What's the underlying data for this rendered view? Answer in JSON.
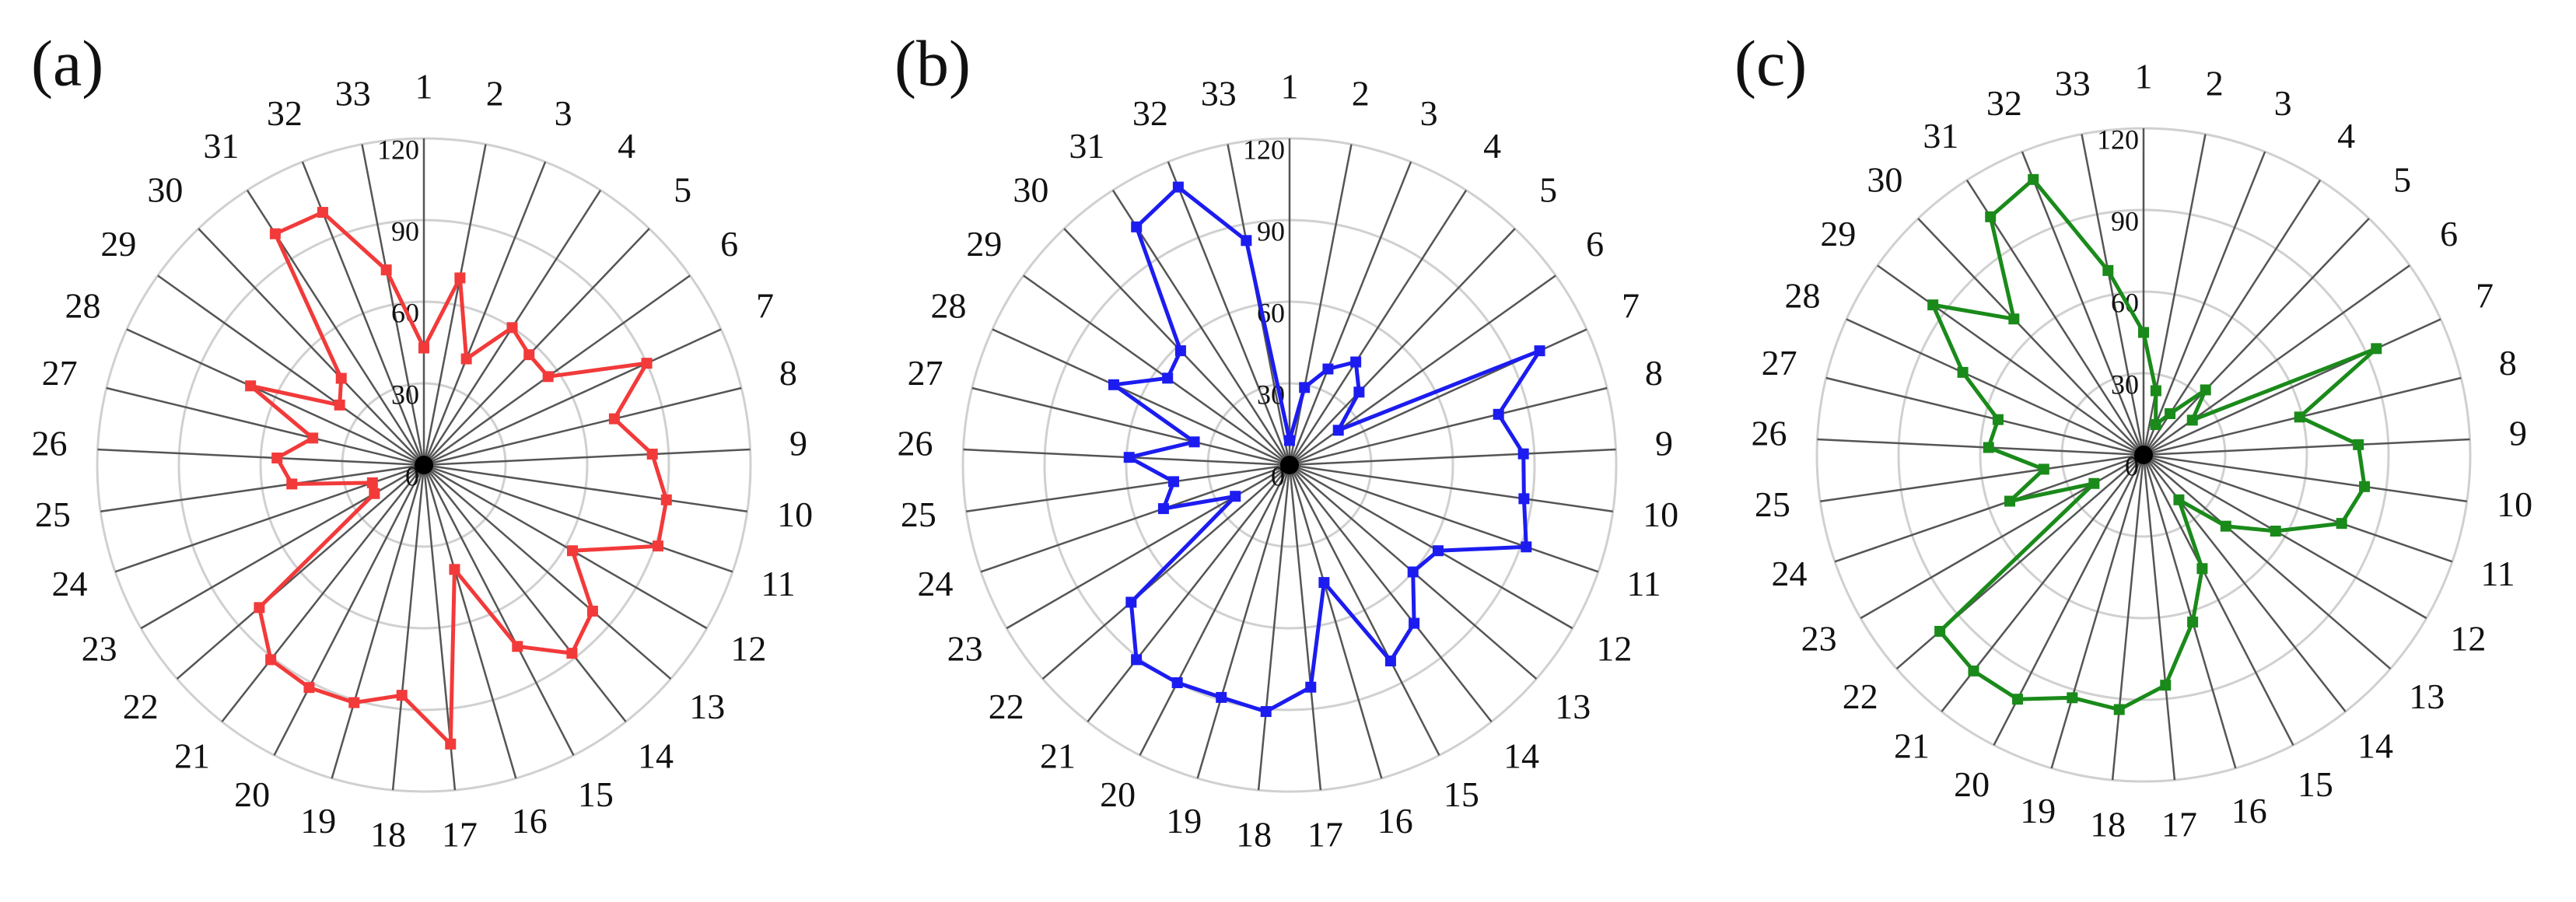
{
  "chart_data": [
    {
      "type": "radar",
      "title": "(a)",
      "color": "#f23a3a",
      "categories": [
        "1",
        "2",
        "3",
        "4",
        "5",
        "6",
        "7",
        "8",
        "9",
        "10",
        "11",
        "12",
        "13",
        "14",
        "15",
        "16",
        "17",
        "18",
        "19",
        "20",
        "21",
        "22",
        "23",
        "24",
        "25",
        "26",
        "27",
        "28",
        "29",
        "30",
        "31",
        "32",
        "33"
      ],
      "values": [
        43,
        70,
        42,
        60,
        56,
        56,
        90,
        72,
        84,
        90,
        91,
        63,
        82,
        88,
        75,
        40,
        103,
        85,
        91,
        92,
        91,
        80,
        21,
        20,
        49,
        54,
        42,
        70,
        38,
        44,
        101,
        100,
        73
      ],
      "rlim": [
        0,
        120
      ],
      "rticks": [
        0,
        30,
        60,
        90,
        120
      ]
    },
    {
      "type": "radar",
      "title": "(b)",
      "color": "#1c1cf0",
      "categories": [
        "1",
        "2",
        "3",
        "4",
        "5",
        "6",
        "7",
        "8",
        "9",
        "10",
        "11",
        "12",
        "13",
        "14",
        "15",
        "16",
        "17",
        "18",
        "19",
        "20",
        "21",
        "22",
        "23",
        "24",
        "25",
        "26",
        "27",
        "28",
        "29",
        "30",
        "31",
        "32",
        "33"
      ],
      "values": [
        9,
        29,
        38,
        45,
        37,
        22,
        101,
        79,
        86,
        87,
        92,
        63,
        60,
        74,
        81,
        45,
        82,
        91,
        89,
        90,
        91,
        77,
        23,
        49,
        43,
        59,
        36,
        71,
        55,
        58,
        104,
        110,
        84
      ],
      "rlim": [
        0,
        120
      ],
      "rticks": [
        0,
        30,
        60,
        90,
        120
      ]
    },
    {
      "type": "radar",
      "title": "(c)",
      "color": "#1a8a1a",
      "categories": [
        "1",
        "2",
        "3",
        "4",
        "5",
        "6",
        "7",
        "8",
        "9",
        "10",
        "11",
        "12",
        "13",
        "14",
        "15",
        "16",
        "17",
        "18",
        "19",
        "20",
        "21",
        "22",
        "23",
        "24",
        "25",
        "26",
        "27",
        "28",
        "29",
        "30",
        "31",
        "32",
        "33"
      ],
      "values": [
        45,
        24,
        12,
        18,
        33,
        22,
        94,
        59,
        79,
        82,
        77,
        56,
        40,
        21,
        47,
        64,
        85,
        94,
        93,
        101,
        101,
        99,
        21,
        52,
        37,
        57,
        55,
        73,
        95,
        69,
        104,
        109,
        69
      ],
      "rlim": [
        0,
        120
      ],
      "rticks": [
        0,
        30,
        60,
        90,
        120
      ]
    }
  ]
}
